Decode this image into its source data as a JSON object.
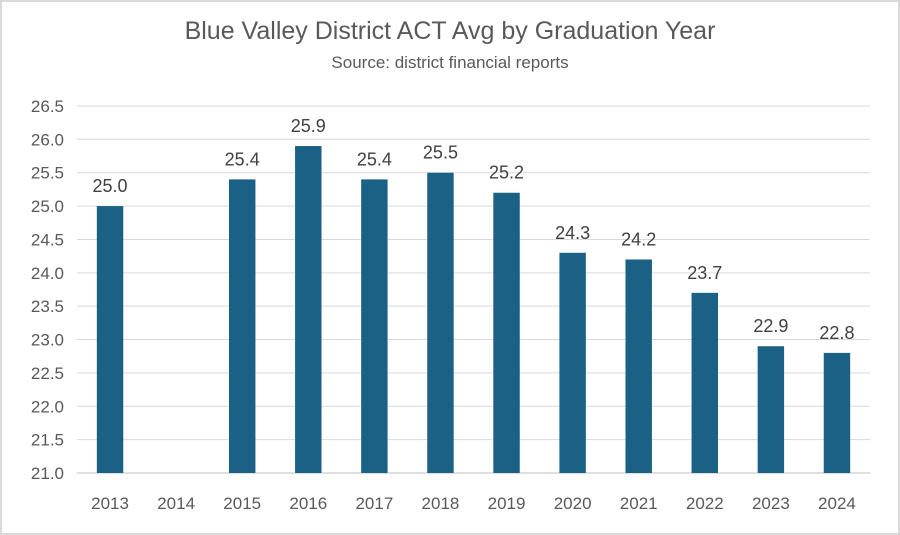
{
  "chart_data": {
    "type": "bar",
    "title": "Blue Valley District ACT Avg by Graduation Year",
    "subtitle": "Source: district financial reports",
    "xlabel": "",
    "ylabel": "",
    "categories": [
      "2013",
      "2014",
      "2015",
      "2016",
      "2017",
      "2018",
      "2019",
      "2020",
      "2021",
      "2022",
      "2023",
      "2024"
    ],
    "values": [
      25.0,
      null,
      25.4,
      25.9,
      25.4,
      25.5,
      25.2,
      24.3,
      24.2,
      23.7,
      22.9,
      22.8
    ],
    "data_labels": [
      "25.0",
      "",
      "25.4",
      "25.9",
      "25.4",
      "25.5",
      "25.2",
      "24.3",
      "24.2",
      "23.7",
      "22.9",
      "22.8"
    ],
    "ylim": [
      21.0,
      26.5
    ],
    "y_ticks": [
      "21.0",
      "21.5",
      "22.0",
      "22.5",
      "23.0",
      "23.5",
      "24.0",
      "24.5",
      "25.0",
      "25.5",
      "26.0",
      "26.5"
    ],
    "grid": true,
    "legend": "none",
    "bar_color": "#1a6185"
  }
}
